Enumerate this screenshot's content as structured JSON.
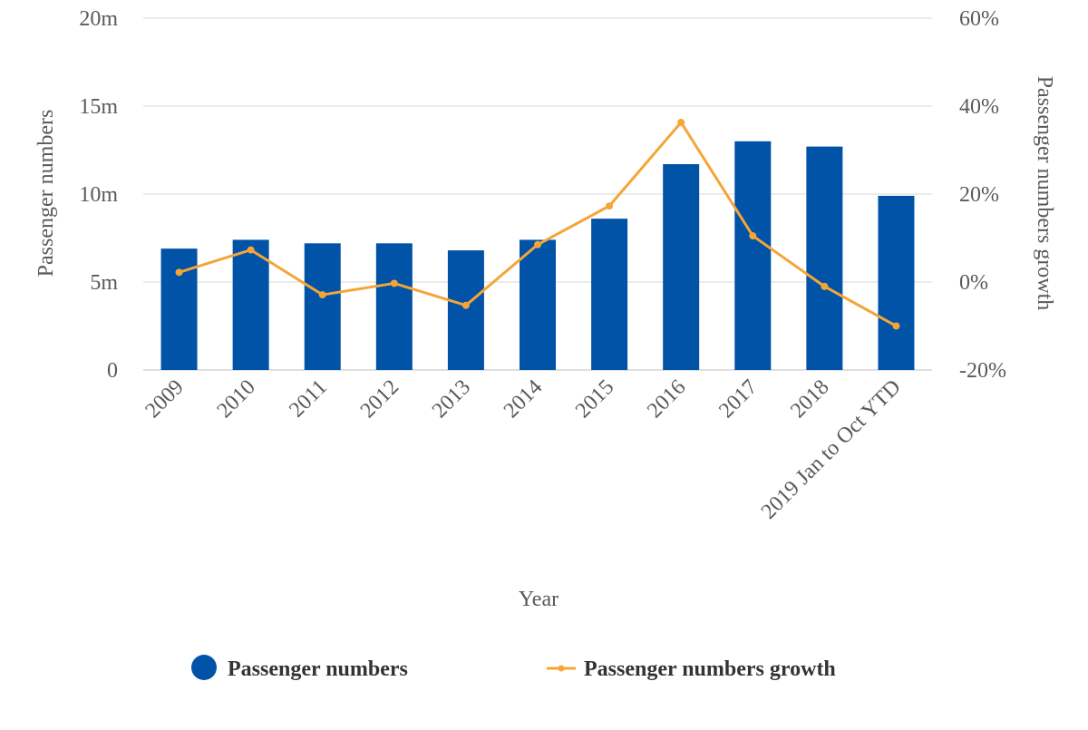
{
  "colors": {
    "bar": "#0053a6",
    "line": "#f5a537",
    "grid": "#d9d9d9",
    "text": "#595959"
  },
  "chart_data": {
    "type": "bar",
    "combo_with": "line",
    "title": "",
    "xlabel": "Year",
    "ylabel": "Passenger numbers",
    "y2label": "Passenger numbers growth",
    "categories": [
      "2009",
      "2010",
      "2011",
      "2012",
      "2013",
      "2014",
      "2015",
      "2016",
      "2017",
      "2018",
      "2019 Jan to Oct YTD"
    ],
    "ylim": [
      0,
      20
    ],
    "yticks": [
      {
        "value": 0,
        "label": "0"
      },
      {
        "value": 5,
        "label": "5m"
      },
      {
        "value": 10,
        "label": "10m"
      },
      {
        "value": 15,
        "label": "15m"
      },
      {
        "value": 20,
        "label": "20m"
      }
    ],
    "y2lim": [
      -20,
      60
    ],
    "y2ticks": [
      {
        "value": -20,
        "label": "-20%"
      },
      {
        "value": 0,
        "label": "0%"
      },
      {
        "value": 20,
        "label": "20%"
      },
      {
        "value": 40,
        "label": "40%"
      },
      {
        "value": 60,
        "label": "60%"
      }
    ],
    "grid": true,
    "legend_position": "bottom",
    "series": [
      {
        "name": "Passenger numbers",
        "type": "bar",
        "axis": "left",
        "unit": "millions",
        "values": [
          6.9,
          7.4,
          7.2,
          7.2,
          6.8,
          7.4,
          8.6,
          11.7,
          13.0,
          12.7,
          9.9
        ]
      },
      {
        "name": "Passenger numbers growth",
        "type": "line",
        "axis": "right",
        "unit": "percent",
        "values": [
          2.2,
          7.3,
          -2.9,
          -0.3,
          -5.3,
          8.5,
          17.3,
          36.3,
          10.5,
          -1.0,
          -10.0
        ]
      }
    ]
  }
}
